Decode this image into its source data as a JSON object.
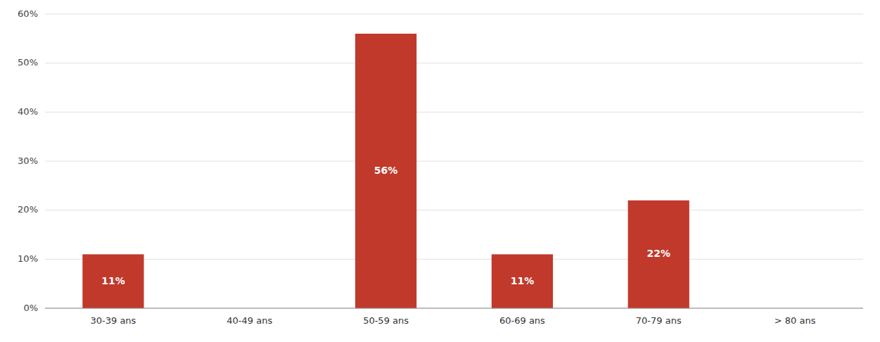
{
  "chart_data": {
    "type": "bar",
    "categories": [
      "30-39 ans",
      "40-49 ans",
      "50-59 ans",
      "60-69 ans",
      "70-79 ans",
      "> 80 ans"
    ],
    "values": [
      11,
      0,
      56,
      11,
      22,
      0
    ],
    "value_labels": [
      "11%",
      null,
      "56%",
      "11%",
      "22%",
      null
    ],
    "data_labels": true,
    "color": "#c0392b",
    "ylim": [
      0,
      60
    ],
    "yticks": [
      {
        "value": 0,
        "label": "0%"
      },
      {
        "value": 10,
        "label": "10%"
      },
      {
        "value": 20,
        "label": "20%"
      },
      {
        "value": 30,
        "label": "30%"
      },
      {
        "value": 40,
        "label": "40%"
      },
      {
        "value": 50,
        "label": "50%"
      },
      {
        "value": 60,
        "label": "60%"
      }
    ],
    "grid": true
  }
}
